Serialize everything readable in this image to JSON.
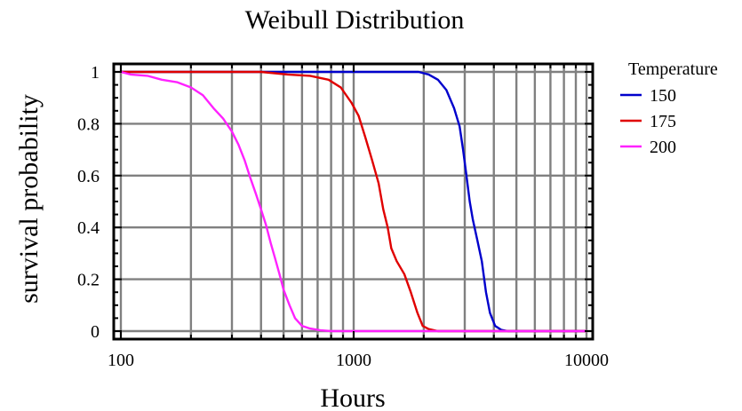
{
  "chart_data": {
    "type": "line",
    "title": "Weibull Distribution",
    "xlabel": "Hours",
    "ylabel": "survival probability",
    "xscale": "log",
    "xlim": [
      100,
      10000
    ],
    "ylim": [
      0,
      1
    ],
    "x_ticks": [
      100,
      1000,
      10000
    ],
    "x_tick_labels": [
      "100",
      "1000",
      "10000"
    ],
    "y_ticks": [
      0,
      0.2,
      0.4,
      0.6,
      0.8,
      1
    ],
    "y_tick_labels": [
      "0",
      "0.2",
      "0.4",
      "0.6",
      "0.8",
      "1"
    ],
    "grid": true,
    "legend": {
      "title": "Temperature",
      "placement": "right",
      "entries": [
        "150",
        "175",
        "200"
      ]
    },
    "series": [
      {
        "name": "150",
        "color": "#0000cc",
        "points": [
          [
            100,
            1
          ],
          [
            1000,
            1
          ],
          [
            1900,
            1
          ],
          [
            2100,
            0.99
          ],
          [
            2300,
            0.97
          ],
          [
            2500,
            0.93
          ],
          [
            2700,
            0.86
          ],
          [
            2850,
            0.79
          ],
          [
            2950,
            0.7
          ],
          [
            3050,
            0.6
          ],
          [
            3150,
            0.5
          ],
          [
            3250,
            0.43
          ],
          [
            3400,
            0.35
          ],
          [
            3550,
            0.27
          ],
          [
            3700,
            0.15
          ],
          [
            3850,
            0.07
          ],
          [
            4050,
            0.02
          ],
          [
            4300,
            0.005
          ],
          [
            4600,
            0
          ],
          [
            10000,
            0
          ]
        ]
      },
      {
        "name": "175",
        "color": "#e00000",
        "points": [
          [
            100,
            1
          ],
          [
            400,
            1
          ],
          [
            520,
            0.99
          ],
          [
            650,
            0.985
          ],
          [
            780,
            0.97
          ],
          [
            880,
            0.94
          ],
          [
            980,
            0.88
          ],
          [
            1050,
            0.83
          ],
          [
            1120,
            0.75
          ],
          [
            1200,
            0.66
          ],
          [
            1280,
            0.57
          ],
          [
            1340,
            0.47
          ],
          [
            1400,
            0.4
          ],
          [
            1450,
            0.32
          ],
          [
            1530,
            0.27
          ],
          [
            1650,
            0.22
          ],
          [
            1760,
            0.15
          ],
          [
            1880,
            0.07
          ],
          [
            1980,
            0.02
          ],
          [
            2100,
            0.008
          ],
          [
            2300,
            0
          ],
          [
            10000,
            0
          ]
        ]
      },
      {
        "name": "200",
        "color": "#ff22ff",
        "points": [
          [
            100,
            1
          ],
          [
            110,
            0.99
          ],
          [
            130,
            0.985
          ],
          [
            150,
            0.97
          ],
          [
            175,
            0.96
          ],
          [
            200,
            0.94
          ],
          [
            225,
            0.91
          ],
          [
            250,
            0.86
          ],
          [
            275,
            0.82
          ],
          [
            300,
            0.77
          ],
          [
            320,
            0.72
          ],
          [
            340,
            0.66
          ],
          [
            360,
            0.59
          ],
          [
            380,
            0.53
          ],
          [
            400,
            0.47
          ],
          [
            420,
            0.41
          ],
          [
            440,
            0.34
          ],
          [
            460,
            0.28
          ],
          [
            480,
            0.22
          ],
          [
            500,
            0.16
          ],
          [
            530,
            0.1
          ],
          [
            560,
            0.05
          ],
          [
            600,
            0.02
          ],
          [
            650,
            0.01
          ],
          [
            720,
            0.003
          ],
          [
            800,
            0
          ],
          [
            10000,
            0
          ]
        ]
      }
    ]
  }
}
